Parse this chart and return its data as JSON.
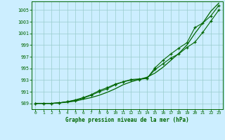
{
  "title": "Graphe pression niveau de la mer (hPa)",
  "bg_color": "#cceeff",
  "grid_color": "#99cccc",
  "line_color": "#006600",
  "marker_color": "#006600",
  "xlim": [
    -0.5,
    23.5
  ],
  "ylim": [
    988.0,
    1006.5
  ],
  "yticks": [
    989,
    991,
    993,
    995,
    997,
    999,
    1001,
    1003,
    1005
  ],
  "xticks": [
    0,
    1,
    2,
    3,
    4,
    5,
    6,
    7,
    8,
    9,
    10,
    11,
    12,
    13,
    14,
    15,
    16,
    17,
    18,
    19,
    20,
    21,
    22,
    23
  ],
  "hours": [
    0,
    1,
    2,
    3,
    4,
    5,
    6,
    7,
    8,
    9,
    10,
    11,
    12,
    13,
    14,
    15,
    16,
    17,
    18,
    19,
    20,
    21,
    22,
    23
  ],
  "line1_smooth": [
    989.0,
    989.0,
    989.0,
    989.1,
    989.2,
    989.4,
    989.7,
    990.0,
    990.4,
    990.9,
    991.5,
    992.2,
    992.7,
    993.1,
    993.5,
    994.2,
    995.2,
    996.4,
    997.6,
    999.0,
    1001.0,
    1002.8,
    1004.8,
    1006.2
  ],
  "line2_marked": [
    989.0,
    989.0,
    989.0,
    989.1,
    989.3,
    989.5,
    989.9,
    990.4,
    991.0,
    991.5,
    992.2,
    992.7,
    993.1,
    993.2,
    993.3,
    994.8,
    995.8,
    996.8,
    997.5,
    998.6,
    999.5,
    1001.2,
    1003.1,
    1005.0
  ],
  "line3_marked": [
    989.0,
    989.0,
    989.0,
    989.1,
    989.3,
    989.6,
    990.0,
    990.5,
    991.2,
    991.7,
    992.3,
    992.7,
    993.0,
    993.1,
    993.3,
    995.1,
    996.4,
    997.5,
    998.5,
    999.4,
    1002.0,
    1002.8,
    1004.0,
    1005.8
  ]
}
